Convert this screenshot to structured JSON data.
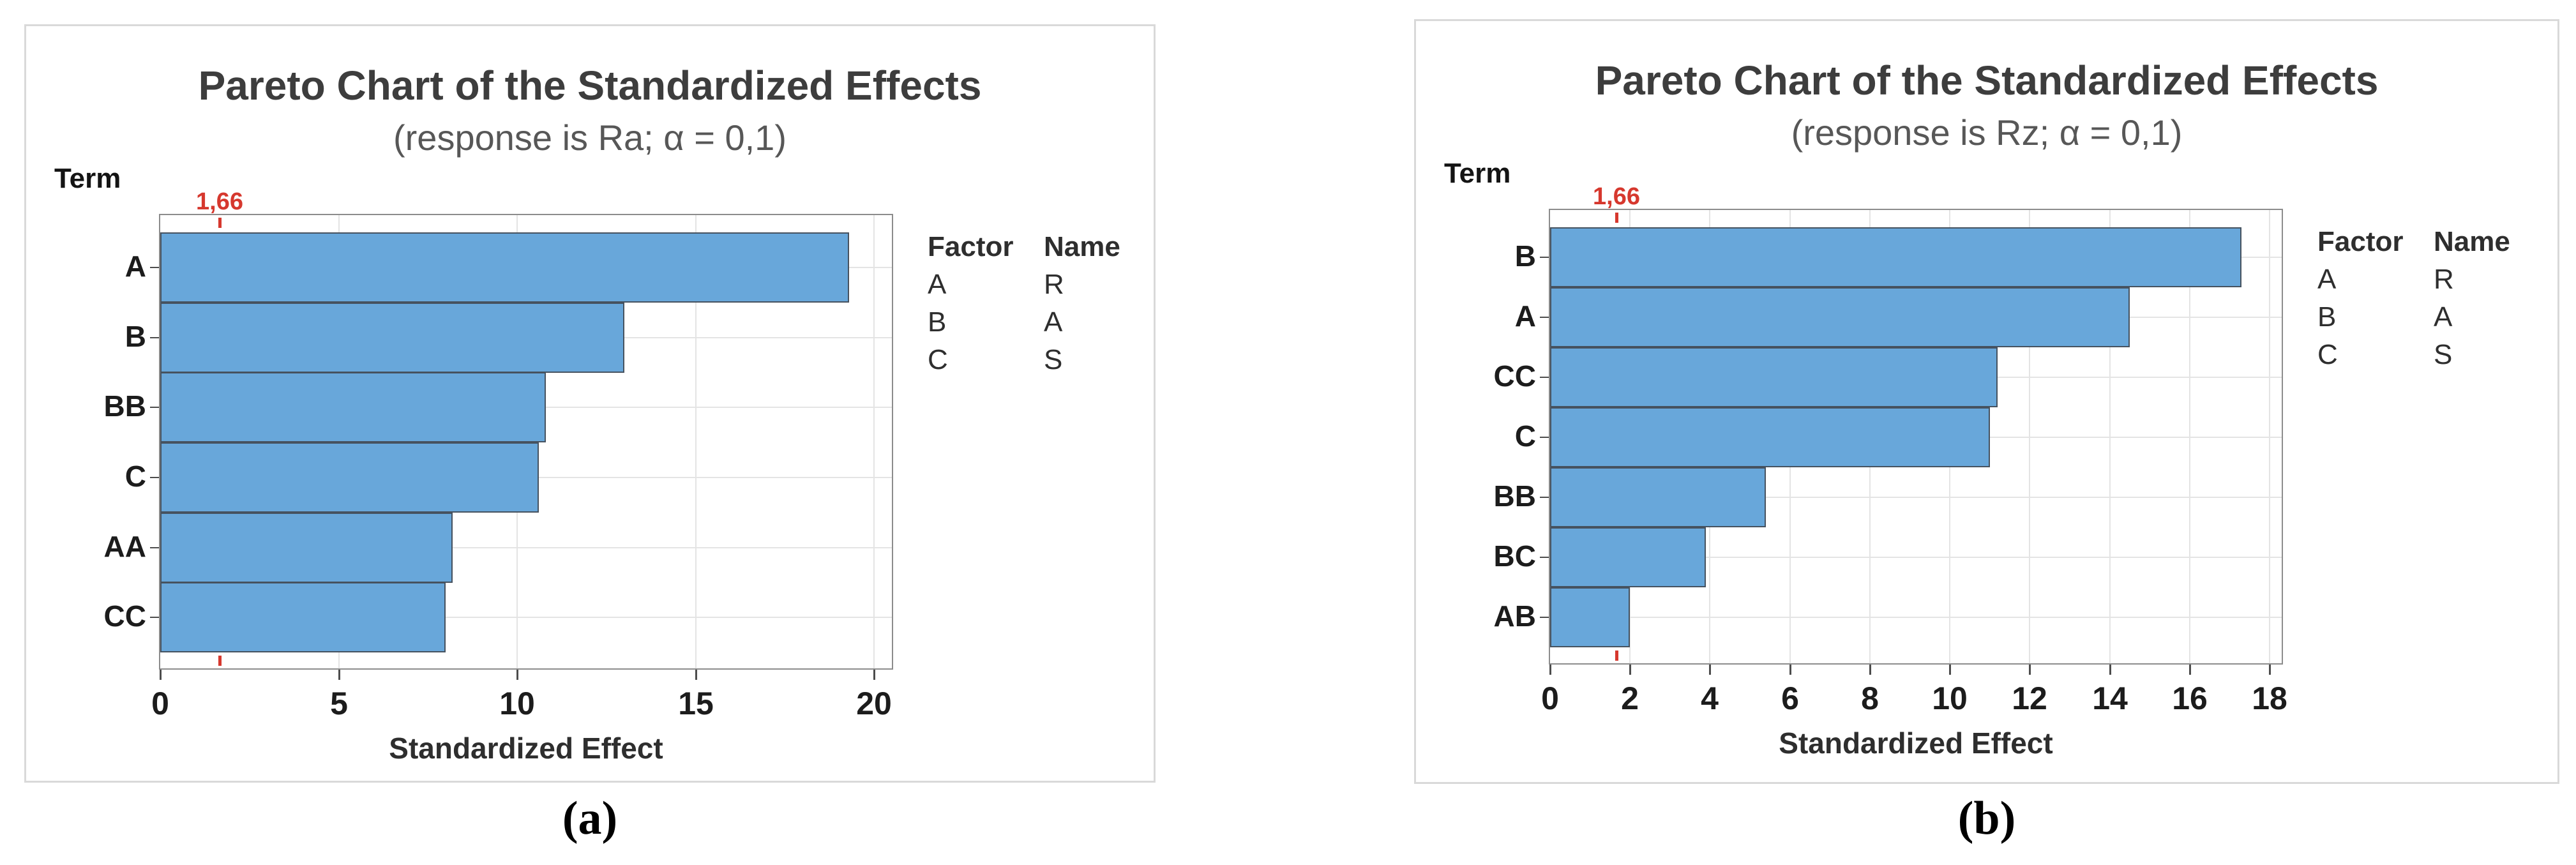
{
  "colors": {
    "bar_fill": "#68a7da",
    "bar_border": "#46525f",
    "reference": "#d6382e",
    "gridline": "#e4e4e4"
  },
  "captions": [
    {
      "label": "(a)"
    },
    {
      "label": "(b)"
    }
  ],
  "chart_data": [
    {
      "type": "bar",
      "orientation": "horizontal",
      "title": "Pareto Chart of the Standardized Effects",
      "subtitle": "(response is Ra; α = 0,1)",
      "term_label": "Term",
      "xlabel": "Standardized Effect",
      "categories": [
        "A",
        "B",
        "BB",
        "C",
        "AA",
        "CC"
      ],
      "values": [
        19.3,
        13.0,
        10.8,
        10.6,
        8.2,
        8.0
      ],
      "x_ticks": [
        0,
        5,
        10,
        15,
        20
      ],
      "xlim": [
        0,
        20.5
      ],
      "grid": true,
      "reference_line": {
        "value": 1.66,
        "label": "1,66"
      },
      "legend": {
        "position": "right",
        "headers": [
          "Factor",
          "Name"
        ],
        "rows": [
          [
            "A",
            "R"
          ],
          [
            "B",
            "A"
          ],
          [
            "C",
            "S"
          ]
        ]
      }
    },
    {
      "type": "bar",
      "orientation": "horizontal",
      "title": "Pareto Chart of the Standardized Effects",
      "subtitle": "(response is Rz; α = 0,1)",
      "term_label": "Term",
      "xlabel": "Standardized Effect",
      "categories": [
        "B",
        "A",
        "CC",
        "C",
        "BB",
        "BC",
        "AB"
      ],
      "values": [
        17.3,
        14.5,
        11.2,
        11.0,
        5.4,
        3.9,
        2.0
      ],
      "x_ticks": [
        0,
        2,
        4,
        6,
        8,
        10,
        12,
        14,
        16,
        18
      ],
      "xlim": [
        0,
        18.3
      ],
      "grid": true,
      "reference_line": {
        "value": 1.66,
        "label": "1,66"
      },
      "legend": {
        "position": "right",
        "headers": [
          "Factor",
          "Name"
        ],
        "rows": [
          [
            "A",
            "R"
          ],
          [
            "B",
            "A"
          ],
          [
            "C",
            "S"
          ]
        ]
      }
    }
  ]
}
